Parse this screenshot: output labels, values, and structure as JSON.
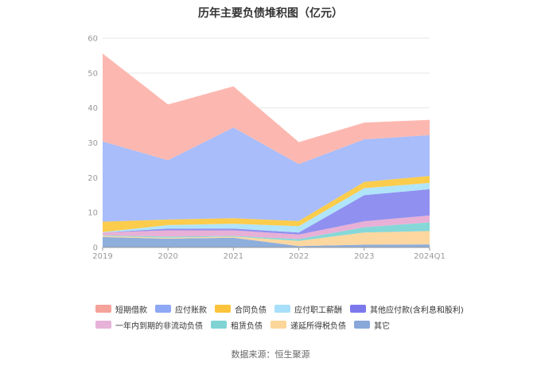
{
  "title": "历年主要负债堆积图（亿元）",
  "source": "数据来源：恒生聚源",
  "chart_data": {
    "type": "area",
    "stacked": true,
    "x": [
      "2019",
      "2020",
      "2021",
      "2022",
      "2023",
      "2024Q1"
    ],
    "ylim": [
      0,
      60
    ],
    "yticks": [
      0,
      10,
      20,
      30,
      40,
      50,
      60
    ],
    "grid": true,
    "legend_position": "bottom",
    "series": [
      {
        "name": "其它",
        "color": "#8eaedc",
        "values": [
          3.0,
          2.5,
          2.8,
          0.4,
          0.8,
          0.9
        ]
      },
      {
        "name": "递延所得税负债",
        "color": "#fcd79f",
        "values": [
          0.3,
          0.3,
          0.3,
          1.5,
          3.5,
          3.8
        ]
      },
      {
        "name": "租赁负债",
        "color": "#86d8d8",
        "values": [
          0.2,
          0.3,
          0.2,
          0.5,
          1.5,
          2.5
        ]
      },
      {
        "name": "一年内到期的非流动负债",
        "color": "#e8b0d6",
        "values": [
          0.8,
          1.8,
          1.6,
          1.3,
          1.7,
          2.0
        ]
      },
      {
        "name": "其他应付款(含利息和股利)",
        "color": "#9090f0",
        "values": [
          0.0,
          0.5,
          0.5,
          0.6,
          7.5,
          7.5
        ]
      },
      {
        "name": "应付职工薪酬",
        "color": "#b0e4fa",
        "values": [
          0.1,
          1.0,
          1.4,
          1.8,
          2.0,
          1.8
        ]
      },
      {
        "name": "合同负债",
        "color": "#fccc4c",
        "values": [
          3.0,
          1.6,
          1.6,
          1.5,
          1.8,
          2.0
        ]
      },
      {
        "name": "应付账款",
        "color": "#a8bdfa",
        "values": [
          23.0,
          17.0,
          26.0,
          16.3,
          12.2,
          11.7
        ]
      },
      {
        "name": "短期借款",
        "color": "#fcb8b0",
        "values": [
          25.2,
          16.0,
          11.8,
          6.3,
          4.8,
          4.4
        ]
      }
    ]
  },
  "legend": {
    "rows": [
      [
        {
          "label": "短期借款",
          "color": "#f4a29a"
        },
        {
          "label": "应付账款",
          "color": "#8fa8f6"
        },
        {
          "label": "合同负债",
          "color": "#fbc43c"
        },
        {
          "label": "应付职工薪酬",
          "color": "#a8dffa"
        },
        {
          "label": "其他应付款(含利息和股利)",
          "color": "#7b78ec"
        }
      ],
      [
        {
          "label": "一年内到期的非流动负债",
          "color": "#e6b2d8"
        },
        {
          "label": "租赁负债",
          "color": "#7fd3d3"
        },
        {
          "label": "递延所得税负债",
          "color": "#fbd699"
        },
        {
          "label": "其它",
          "color": "#8aa7da"
        }
      ]
    ]
  }
}
